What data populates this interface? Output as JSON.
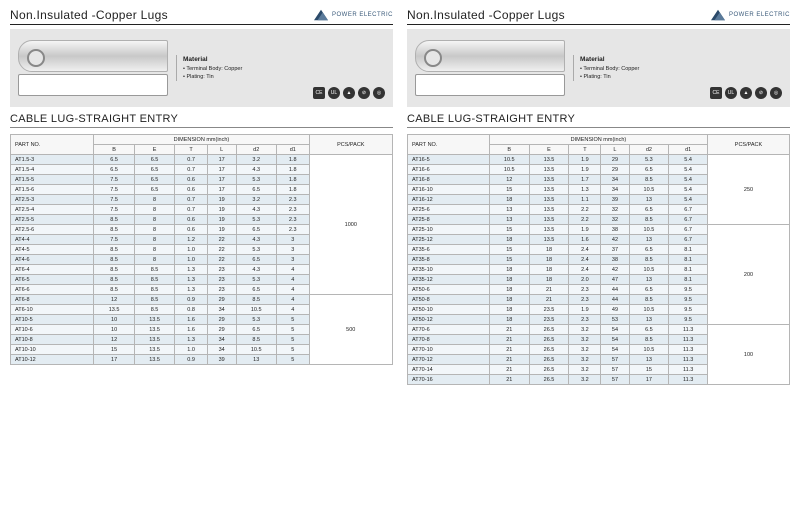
{
  "brand": "POWER ELECTRIC",
  "title": "Non.Insulated -Copper Lugs",
  "section": "CABLE LUG-STRAIGHT ENTRY",
  "material": {
    "heading": "Material",
    "lines": [
      "Terminal Body: Copper",
      "Plating: Tin"
    ]
  },
  "cert_marks": [
    "CE",
    "UL",
    "▲",
    "⊘",
    "◎"
  ],
  "table_header": {
    "part": "PART NO.",
    "dim": "DIMENSION mm(inch)",
    "cols": [
      "B",
      "E",
      "T",
      "L",
      "d2",
      "d1"
    ],
    "pack": "PCS/PACK"
  },
  "left": {
    "groups": [
      {
        "pack": "1000",
        "rows": [
          [
            "AT1.5-3",
            "6.5",
            "6.5",
            "0.7",
            "17",
            "3.2",
            "1.8"
          ],
          [
            "AT1.5-4",
            "6.5",
            "6.5",
            "0.7",
            "17",
            "4.3",
            "1.8"
          ],
          [
            "AT1.5-5",
            "7.5",
            "6.5",
            "0.6",
            "17",
            "5.3",
            "1.8"
          ],
          [
            "AT1.5-6",
            "7.5",
            "6.5",
            "0.6",
            "17",
            "6.5",
            "1.8"
          ],
          [
            "AT2.5-3",
            "7.5",
            "8",
            "0.7",
            "19",
            "3.2",
            "2.3"
          ],
          [
            "AT2.5-4",
            "7.5",
            "8",
            "0.7",
            "19",
            "4.3",
            "2.3"
          ],
          [
            "AT2.5-5",
            "8.5",
            "8",
            "0.6",
            "19",
            "5.3",
            "2.3"
          ],
          [
            "AT2.5-6",
            "8.5",
            "8",
            "0.6",
            "19",
            "6.5",
            "2.3"
          ],
          [
            "AT4-4",
            "7.5",
            "8",
            "1.2",
            "22",
            "4.3",
            "3"
          ],
          [
            "AT4-5",
            "8.5",
            "8",
            "1.0",
            "22",
            "5.3",
            "3"
          ],
          [
            "AT4-6",
            "8.5",
            "8",
            "1.0",
            "22",
            "6.5",
            "3"
          ],
          [
            "AT6-4",
            "8.5",
            "8.5",
            "1.3",
            "23",
            "4.3",
            "4"
          ],
          [
            "AT6-5",
            "8.5",
            "8.5",
            "1.3",
            "23",
            "5.3",
            "4"
          ],
          [
            "AT6-6",
            "8.5",
            "8.5",
            "1.3",
            "23",
            "6.5",
            "4"
          ]
        ]
      },
      {
        "pack": "500",
        "rows": [
          [
            "AT6-8",
            "12",
            "8.5",
            "0.9",
            "29",
            "8.5",
            "4"
          ],
          [
            "AT6-10",
            "13.5",
            "8.5",
            "0.8",
            "34",
            "10.5",
            "4"
          ],
          [
            "AT10-5",
            "10",
            "13.5",
            "1.6",
            "29",
            "5.3",
            "5"
          ],
          [
            "AT10-6",
            "10",
            "13.5",
            "1.6",
            "29",
            "6.5",
            "5"
          ],
          [
            "AT10-8",
            "12",
            "13.5",
            "1.3",
            "34",
            "8.5",
            "5"
          ],
          [
            "AT10-10",
            "15",
            "13.5",
            "1.0",
            "34",
            "10.5",
            "5"
          ],
          [
            "AT10-12",
            "17",
            "13.5",
            "0.9",
            "39",
            "13",
            "5"
          ]
        ]
      }
    ]
  },
  "right": {
    "groups": [
      {
        "pack": "250",
        "rows": [
          [
            "AT16-5",
            "10.5",
            "13.5",
            "1.9",
            "29",
            "5.3",
            "5.4"
          ],
          [
            "AT16-6",
            "10.5",
            "13.5",
            "1.9",
            "29",
            "6.5",
            "5.4"
          ],
          [
            "AT16-8",
            "12",
            "13.5",
            "1.7",
            "34",
            "8.5",
            "5.4"
          ],
          [
            "AT16-10",
            "15",
            "13.5",
            "1.3",
            "34",
            "10.5",
            "5.4"
          ],
          [
            "AT16-12",
            "18",
            "13.5",
            "1.1",
            "39",
            "13",
            "5.4"
          ],
          [
            "AT25-6",
            "13",
            "13.5",
            "2.2",
            "32",
            "6.5",
            "6.7"
          ],
          [
            "AT25-8",
            "13",
            "13.5",
            "2.2",
            "32",
            "8.5",
            "6.7"
          ]
        ]
      },
      {
        "pack": "200",
        "rows": [
          [
            "AT25-10",
            "15",
            "13.5",
            "1.9",
            "38",
            "10.5",
            "6.7"
          ],
          [
            "AT25-12",
            "18",
            "13.5",
            "1.6",
            "42",
            "13",
            "6.7"
          ],
          [
            "AT35-6",
            "15",
            "18",
            "2.4",
            "37",
            "6.5",
            "8.1"
          ],
          [
            "AT35-8",
            "15",
            "18",
            "2.4",
            "38",
            "8.5",
            "8.1"
          ],
          [
            "AT35-10",
            "18",
            "18",
            "2.4",
            "42",
            "10.5",
            "8.1"
          ],
          [
            "AT35-12",
            "18",
            "18",
            "2.0",
            "47",
            "13",
            "8.1"
          ],
          [
            "AT50-6",
            "18",
            "21",
            "2.3",
            "44",
            "6.5",
            "9.5"
          ],
          [
            "AT50-8",
            "18",
            "21",
            "2.3",
            "44",
            "8.5",
            "9.5"
          ],
          [
            "AT50-10",
            "18",
            "23.5",
            "1.9",
            "49",
            "10.5",
            "9.5"
          ],
          [
            "AT50-12",
            "18",
            "23.5",
            "2.3",
            "53",
            "13",
            "9.5"
          ]
        ]
      },
      {
        "pack": "100",
        "rows": [
          [
            "AT70-6",
            "21",
            "26.5",
            "3.2",
            "54",
            "6.5",
            "11.3"
          ],
          [
            "AT70-8",
            "21",
            "26.5",
            "3.2",
            "54",
            "8.5",
            "11.3"
          ],
          [
            "AT70-10",
            "21",
            "26.5",
            "3.2",
            "54",
            "10.5",
            "11.3"
          ],
          [
            "AT70-12",
            "21",
            "26.5",
            "3.2",
            "57",
            "13",
            "11.3"
          ],
          [
            "AT70-14",
            "21",
            "26.5",
            "3.2",
            "57",
            "15",
            "11.3"
          ],
          [
            "AT70-16",
            "21",
            "26.5",
            "3.2",
            "57",
            "17",
            "11.3"
          ]
        ]
      }
    ]
  }
}
